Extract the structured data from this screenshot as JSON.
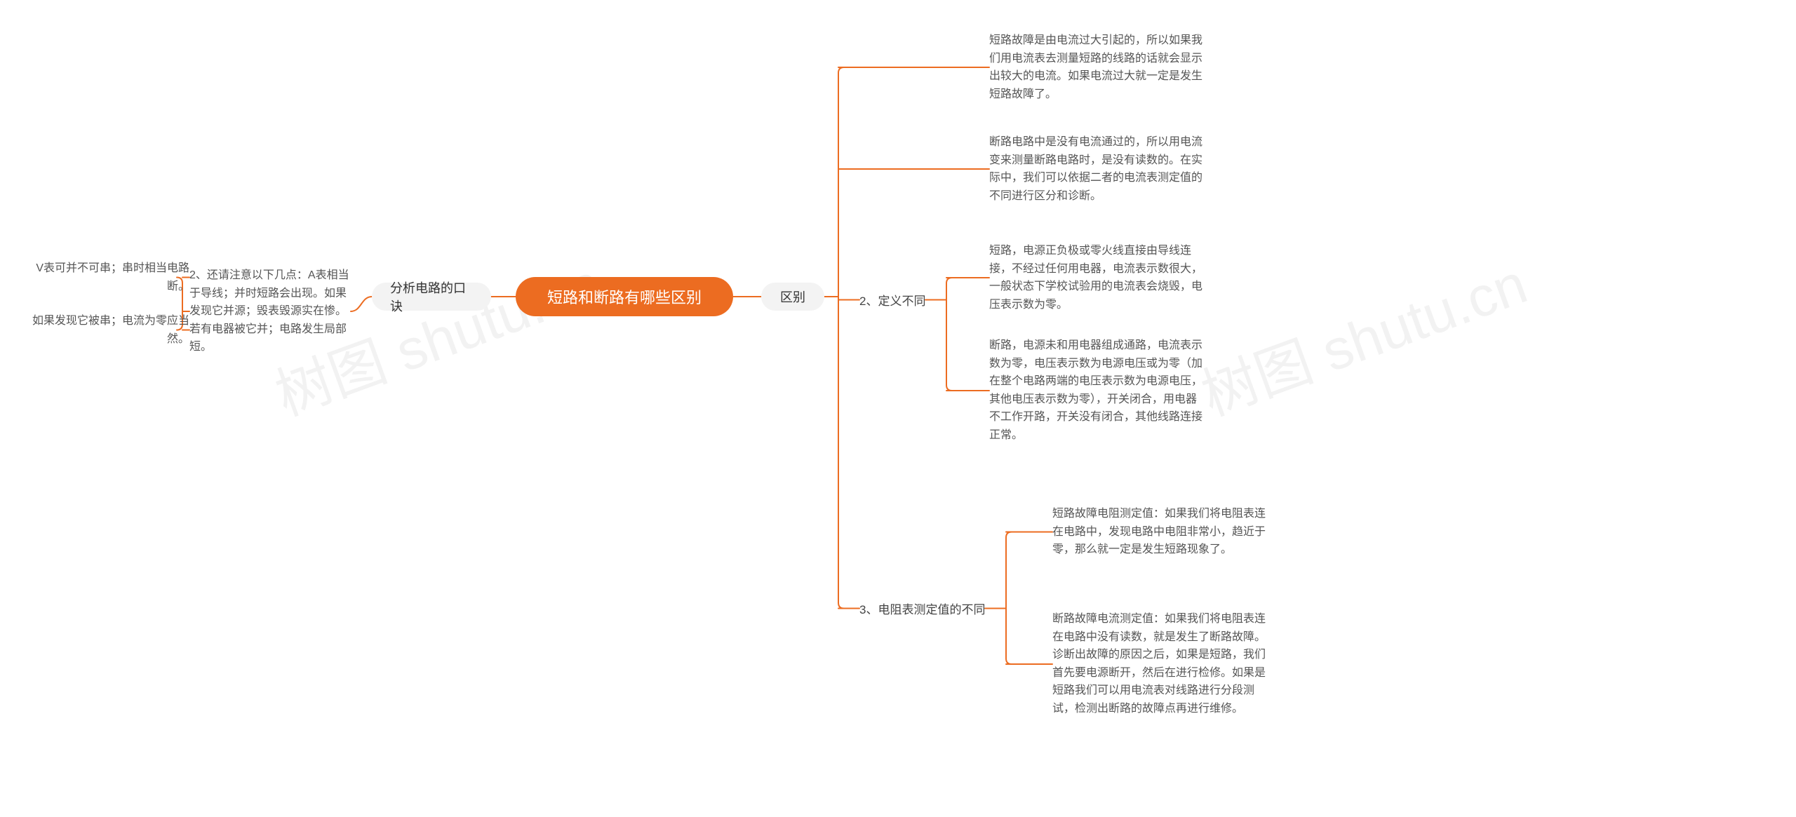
{
  "colors": {
    "accent": "#ec6c21",
    "branch_bg": "#f3f3f3",
    "text": "#555555",
    "subhead": "#444444",
    "edge": "#ec6c21",
    "watermark": "#888888"
  },
  "watermark_text": "树图 shutu.cn",
  "root": {
    "label": "短路和断路有哪些区别"
  },
  "left_branch": {
    "label": "分析电路的口诀",
    "child": {
      "label": "2、还请注意以下几点：A表相当于导线；并时短路会出现。如果发现它并源；毁表毁源实在惨。若有电器被它并；电路发生局部短。",
      "leaves": [
        "V表可并不可串；串时相当电路断。",
        "如果发现它被串；电流为零应当然。"
      ]
    }
  },
  "right_branch": {
    "label": "区别",
    "group1": {
      "leaves": [
        "短路故障是由电流过大引起的，所以如果我们用电流表去测量短路的线路的话就会显示出较大的电流。如果电流过大就一定是发生短路故障了。",
        "断路电路中是没有电流通过的，所以用电流变来测量断路电路时，是没有读数的。在实际中，我们可以依据二者的电流表测定值的不同进行区分和诊断。"
      ]
    },
    "group2": {
      "label": "2、定义不同",
      "leaves": [
        "短路，电源正负极或零火线直接由导线连接，不经过任何用电器，电流表示数很大，一般状态下学校试验用的电流表会烧毁，电压表示数为零。",
        "断路，电源未和用电器组成通路，电流表示数为零，电压表示数为电源电压或为零（加在整个电路两端的电压表示数为电源电压，其他电压表示数为零），开关闭合，用电器不工作开路，开关没有闭合，其他线路连接正常。"
      ]
    },
    "group3": {
      "label": "3、电阻表测定值的不同",
      "leaves": [
        "短路故障电阻测定值：如果我们将电阻表连在电路中，发现电路中电阻非常小，趋近于零，那么就一定是发生短路现象了。",
        "断路故障电流测定值：如果我们将电阻表连在电路中没有读数，就是发生了断路故障。诊断出故障的原因之后，如果是短路，我们首先要电源断开，然后在进行检修。如果是短路我们可以用电流表对线路进行分段测试，检测出断路的故障点再进行维修。"
      ]
    }
  }
}
